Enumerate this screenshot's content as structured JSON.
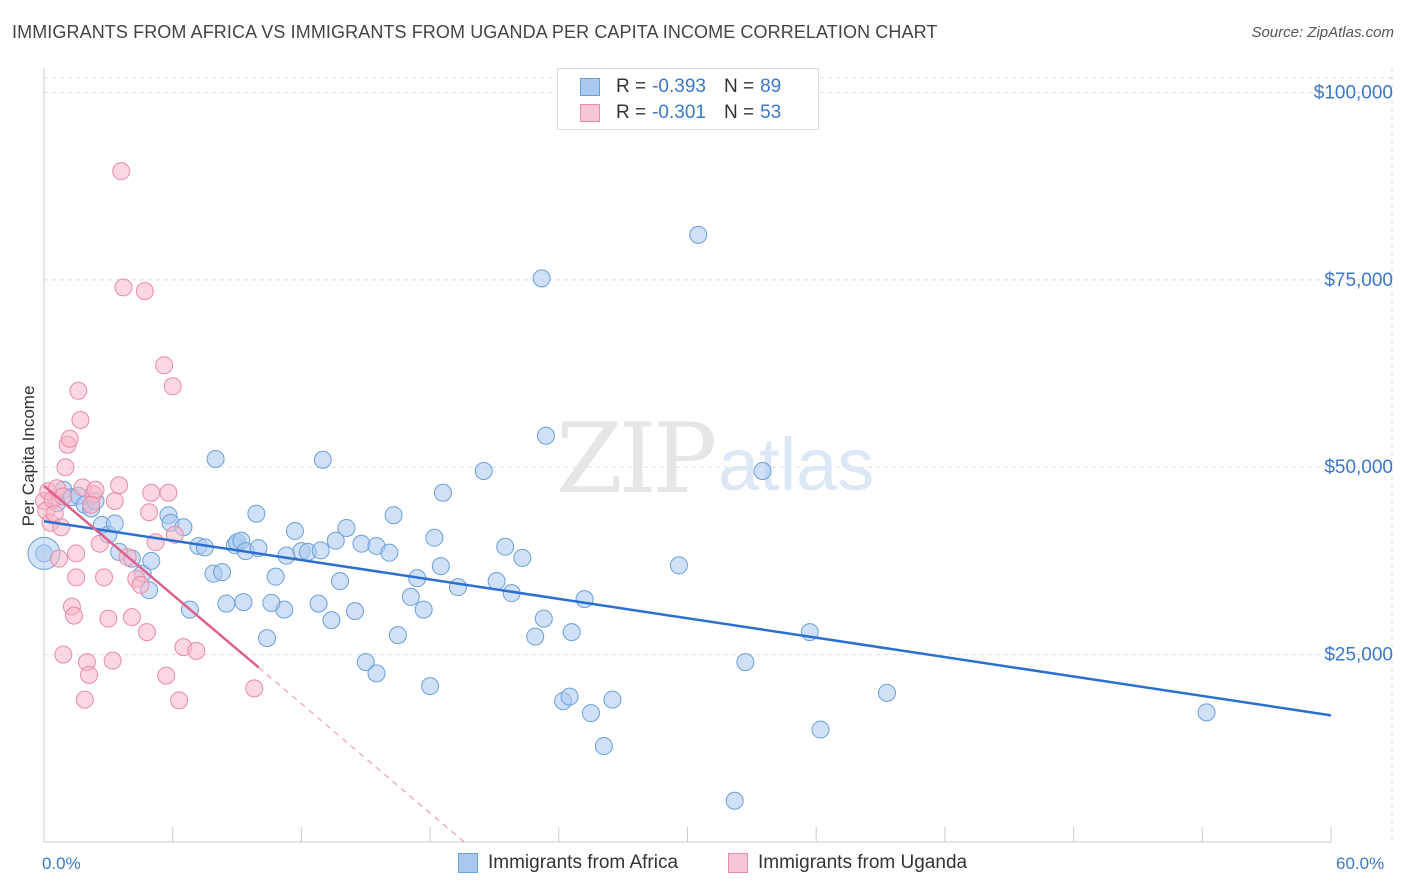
{
  "title": "IMMIGRANTS FROM AFRICA VS IMMIGRANTS FROM UGANDA PER CAPITA INCOME CORRELATION CHART",
  "source": "Source: ZipAtlas.com",
  "watermark": {
    "zip": "ZIP",
    "atlas": "atlas"
  },
  "legend": {
    "africa": {
      "r_label": "R =",
      "r_value": "-0.393",
      "n_label": "N =",
      "n_value": "89"
    },
    "uganda": {
      "r_label": "R =",
      "r_value": "-0.301",
      "n_label": "N =",
      "n_value": "53"
    }
  },
  "colors": {
    "africa_fill": "#a9c9f0",
    "africa_stroke": "#6a9fd8",
    "africa_line": "#2b6fcf",
    "uganda_fill": "#f7b6c9",
    "uganda_stroke": "#e98aa8",
    "uganda_line": "#e0608a",
    "grid": "#dddddd",
    "axis_text": "#3a78c9"
  },
  "chart_data": {
    "type": "scatter",
    "title": "IMMIGRANTS FROM AFRICA VS IMMIGRANTS FROM UGANDA PER CAPITA INCOME CORRELATION CHART",
    "xlabel": "",
    "ylabel": "Per Capita Income",
    "xlim": [
      0,
      60
    ],
    "ylim": [
      0,
      105000
    ],
    "x_tick_labels": [
      "0.0%",
      "60.0%"
    ],
    "y_ticks": [
      25000,
      50000,
      75000,
      100000
    ],
    "y_tick_labels": [
      "$25,000",
      "$50,000",
      "$75,000",
      "$100,000"
    ],
    "grid": true,
    "legend_position": "top-center",
    "series": [
      {
        "name": "Immigrants from Africa",
        "trend": {
          "x": [
            0,
            60
          ],
          "y": [
            42800,
            16900
          ]
        },
        "points": [
          [
            0.0,
            38500
          ],
          [
            0.6,
            45200
          ],
          [
            0.9,
            47000
          ],
          [
            1.3,
            46000
          ],
          [
            1.6,
            46200
          ],
          [
            1.9,
            45000
          ],
          [
            2.2,
            44500
          ],
          [
            2.4,
            45500
          ],
          [
            2.7,
            42300
          ],
          [
            3.0,
            41000
          ],
          [
            3.3,
            42500
          ],
          [
            3.5,
            38700
          ],
          [
            4.1,
            37800
          ],
          [
            4.6,
            35800
          ],
          [
            4.9,
            33600
          ],
          [
            5.0,
            37500
          ],
          [
            5.8,
            43600
          ],
          [
            5.9,
            42600
          ],
          [
            6.5,
            42000
          ],
          [
            6.8,
            31000
          ],
          [
            7.2,
            39500
          ],
          [
            7.5,
            39300
          ],
          [
            7.9,
            35800
          ],
          [
            8.0,
            51100
          ],
          [
            8.5,
            31800
          ],
          [
            8.9,
            39600
          ],
          [
            9.0,
            40000
          ],
          [
            9.2,
            40200
          ],
          [
            9.3,
            32000
          ],
          [
            9.4,
            38800
          ],
          [
            9.9,
            43800
          ],
          [
            10.0,
            39200
          ],
          [
            10.4,
            27200
          ],
          [
            10.8,
            35400
          ],
          [
            11.2,
            31000
          ],
          [
            11.3,
            38200
          ],
          [
            11.7,
            41500
          ],
          [
            12.0,
            38800
          ],
          [
            12.3,
            38700
          ],
          [
            12.8,
            31800
          ],
          [
            12.9,
            38900
          ],
          [
            13.0,
            51000
          ],
          [
            13.4,
            29600
          ],
          [
            13.8,
            34800
          ],
          [
            14.1,
            41900
          ],
          [
            14.5,
            30800
          ],
          [
            14.8,
            39800
          ],
          [
            15.0,
            24000
          ],
          [
            15.5,
            22500
          ],
          [
            15.5,
            39500
          ],
          [
            16.1,
            38600
          ],
          [
            16.3,
            43600
          ],
          [
            16.5,
            27600
          ],
          [
            17.1,
            32700
          ],
          [
            17.4,
            35200
          ],
          [
            17.7,
            31000
          ],
          [
            18.0,
            20800
          ],
          [
            18.2,
            40600
          ],
          [
            18.5,
            36800
          ],
          [
            18.6,
            46600
          ],
          [
            19.3,
            34000
          ],
          [
            20.5,
            49500
          ],
          [
            21.1,
            34800
          ],
          [
            21.5,
            39400
          ],
          [
            21.8,
            33200
          ],
          [
            22.3,
            37900
          ],
          [
            22.9,
            27400
          ],
          [
            23.4,
            54200
          ],
          [
            23.3,
            29800
          ],
          [
            24.6,
            28000
          ],
          [
            23.2,
            75200
          ],
          [
            24.2,
            18800
          ],
          [
            24.5,
            19400
          ],
          [
            25.2,
            32400
          ],
          [
            25.5,
            17200
          ],
          [
            26.1,
            12800
          ],
          [
            26.5,
            19000
          ],
          [
            29.6,
            36900
          ],
          [
            30.5,
            81000
          ],
          [
            32.2,
            5500
          ],
          [
            32.7,
            24000
          ],
          [
            33.5,
            49500
          ],
          [
            35.7,
            28000
          ],
          [
            36.2,
            15000
          ],
          [
            39.3,
            19900
          ],
          [
            54.2,
            17300
          ],
          [
            8.3,
            36000
          ],
          [
            10.6,
            31900
          ],
          [
            13.6,
            40200
          ]
        ]
      },
      {
        "name": "Immigrants from Uganda",
        "trend": {
          "x": [
            0,
            10
          ],
          "y": [
            47500,
            23300
          ]
        },
        "trend_extended": {
          "x": [
            10,
            20
          ],
          "y": [
            23300,
            -1000
          ]
        },
        "points": [
          [
            0.0,
            45500
          ],
          [
            0.1,
            44200
          ],
          [
            0.2,
            46800
          ],
          [
            0.3,
            42600
          ],
          [
            0.4,
            45700
          ],
          [
            0.5,
            43800
          ],
          [
            0.6,
            47200
          ],
          [
            0.7,
            37800
          ],
          [
            0.8,
            42000
          ],
          [
            0.9,
            46100
          ],
          [
            1.0,
            50000
          ],
          [
            1.1,
            53000
          ],
          [
            1.2,
            53800
          ],
          [
            1.3,
            31400
          ],
          [
            1.4,
            30200
          ],
          [
            1.5,
            35300
          ],
          [
            1.6,
            60200
          ],
          [
            1.7,
            56300
          ],
          [
            1.8,
            47300
          ],
          [
            1.9,
            19000
          ],
          [
            2.0,
            24000
          ],
          [
            2.1,
            22300
          ],
          [
            2.3,
            46400
          ],
          [
            2.4,
            47000
          ],
          [
            2.6,
            39800
          ],
          [
            2.8,
            35300
          ],
          [
            3.0,
            29800
          ],
          [
            3.2,
            24200
          ],
          [
            3.3,
            45500
          ],
          [
            3.5,
            47600
          ],
          [
            3.6,
            89500
          ],
          [
            3.7,
            74000
          ],
          [
            3.9,
            38000
          ],
          [
            4.1,
            30000
          ],
          [
            4.3,
            35100
          ],
          [
            4.5,
            34300
          ],
          [
            4.7,
            73500
          ],
          [
            4.8,
            28000
          ],
          [
            5.0,
            46600
          ],
          [
            5.2,
            40000
          ],
          [
            5.6,
            63600
          ],
          [
            5.7,
            22200
          ],
          [
            5.8,
            46600
          ],
          [
            6.0,
            60800
          ],
          [
            6.1,
            41000
          ],
          [
            6.3,
            18900
          ],
          [
            6.5,
            26000
          ],
          [
            7.1,
            25500
          ],
          [
            9.8,
            20500
          ],
          [
            0.9,
            25000
          ],
          [
            1.5,
            38500
          ],
          [
            2.2,
            45000
          ],
          [
            4.9,
            44000
          ]
        ]
      }
    ]
  },
  "axes": {
    "y_label": "Per Capita Income",
    "x_min_label": "0.0%",
    "x_max_label": "60.0%"
  },
  "bottom_legend": {
    "africa": "Immigrants from Africa",
    "uganda": "Immigrants from Uganda"
  }
}
